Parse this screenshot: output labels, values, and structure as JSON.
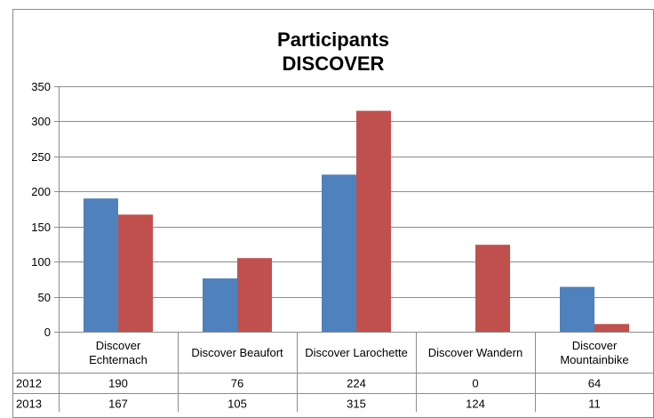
{
  "chart_data": {
    "type": "bar",
    "title": "Participants\nDISCOVER",
    "xlabel": "",
    "ylabel": "",
    "categories": [
      [
        "Discover",
        "Echternach"
      ],
      [
        "Discover Beaufort"
      ],
      [
        "Discover Larochette"
      ],
      [
        "Discover Wandern"
      ],
      [
        "Discover",
        "Mountainbike"
      ]
    ],
    "series": [
      {
        "name": "2012",
        "color": "#4f81bd",
        "values": [
          190,
          76,
          224,
          0,
          64
        ]
      },
      {
        "name": "2013",
        "color": "#c0504d",
        "values": [
          167,
          105,
          315,
          124,
          11
        ]
      }
    ],
    "ylim": [
      0,
      350
    ],
    "yticks": [
      0,
      50,
      100,
      150,
      200,
      250,
      300,
      350
    ],
    "grid": true,
    "legend": "data table"
  }
}
